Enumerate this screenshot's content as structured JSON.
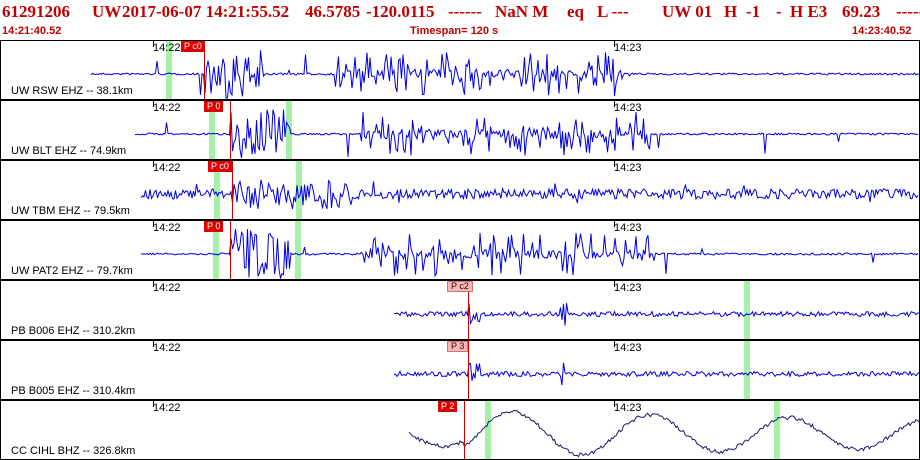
{
  "header": {
    "event_id": "61291206",
    "network": "UW",
    "datetime": "2017-06-07 14:21:55.52",
    "lat": "46.5785",
    "lon": "-120.0115",
    "depth": "------",
    "magnitude": "NaN M",
    "etype": "eq",
    "gtype": "L ---",
    "source": "UW 01",
    "flag_h": "H",
    "ver": "-1",
    "dash": "-",
    "quality": "H E3",
    "value": "69.23",
    "trail": "-----"
  },
  "subheader": {
    "start_time": "14:21:40.52",
    "timespan": "Timespan= 120 s",
    "end_time": "14:23:40.52"
  },
  "time_labels": [
    "14:22",
    "14:23"
  ],
  "panels": [
    {
      "station": "UW RSW EHZ -- 38.1km",
      "pick": "P c0",
      "pick_style": "red"
    },
    {
      "station": "UW BLT EHZ -- 74.9km",
      "pick": "P 0",
      "pick_style": "red"
    },
    {
      "station": "UW TBM EHZ -- 79.5km",
      "pick": "P c0",
      "pick_style": "red"
    },
    {
      "station": "UW PAT2 EHZ -- 79.7km",
      "pick": "P 0",
      "pick_style": "red"
    },
    {
      "station": "PB B006 EHZ -- 310.2km",
      "pick": "P c2",
      "pick_style": "pink"
    },
    {
      "station": "PB B005 EHZ -- 310.4km",
      "pick": "P 3",
      "pick_style": "pink"
    },
    {
      "station": "CC CIHL BHZ -- 326.8km",
      "pick": "P 2",
      "pick_style": "red"
    }
  ],
  "colors": {
    "trace": "#0000e0",
    "trace_dark": "#1a1a6e",
    "pick": "#e00000",
    "marker": "#a7f0a7",
    "header": "#c00000"
  }
}
